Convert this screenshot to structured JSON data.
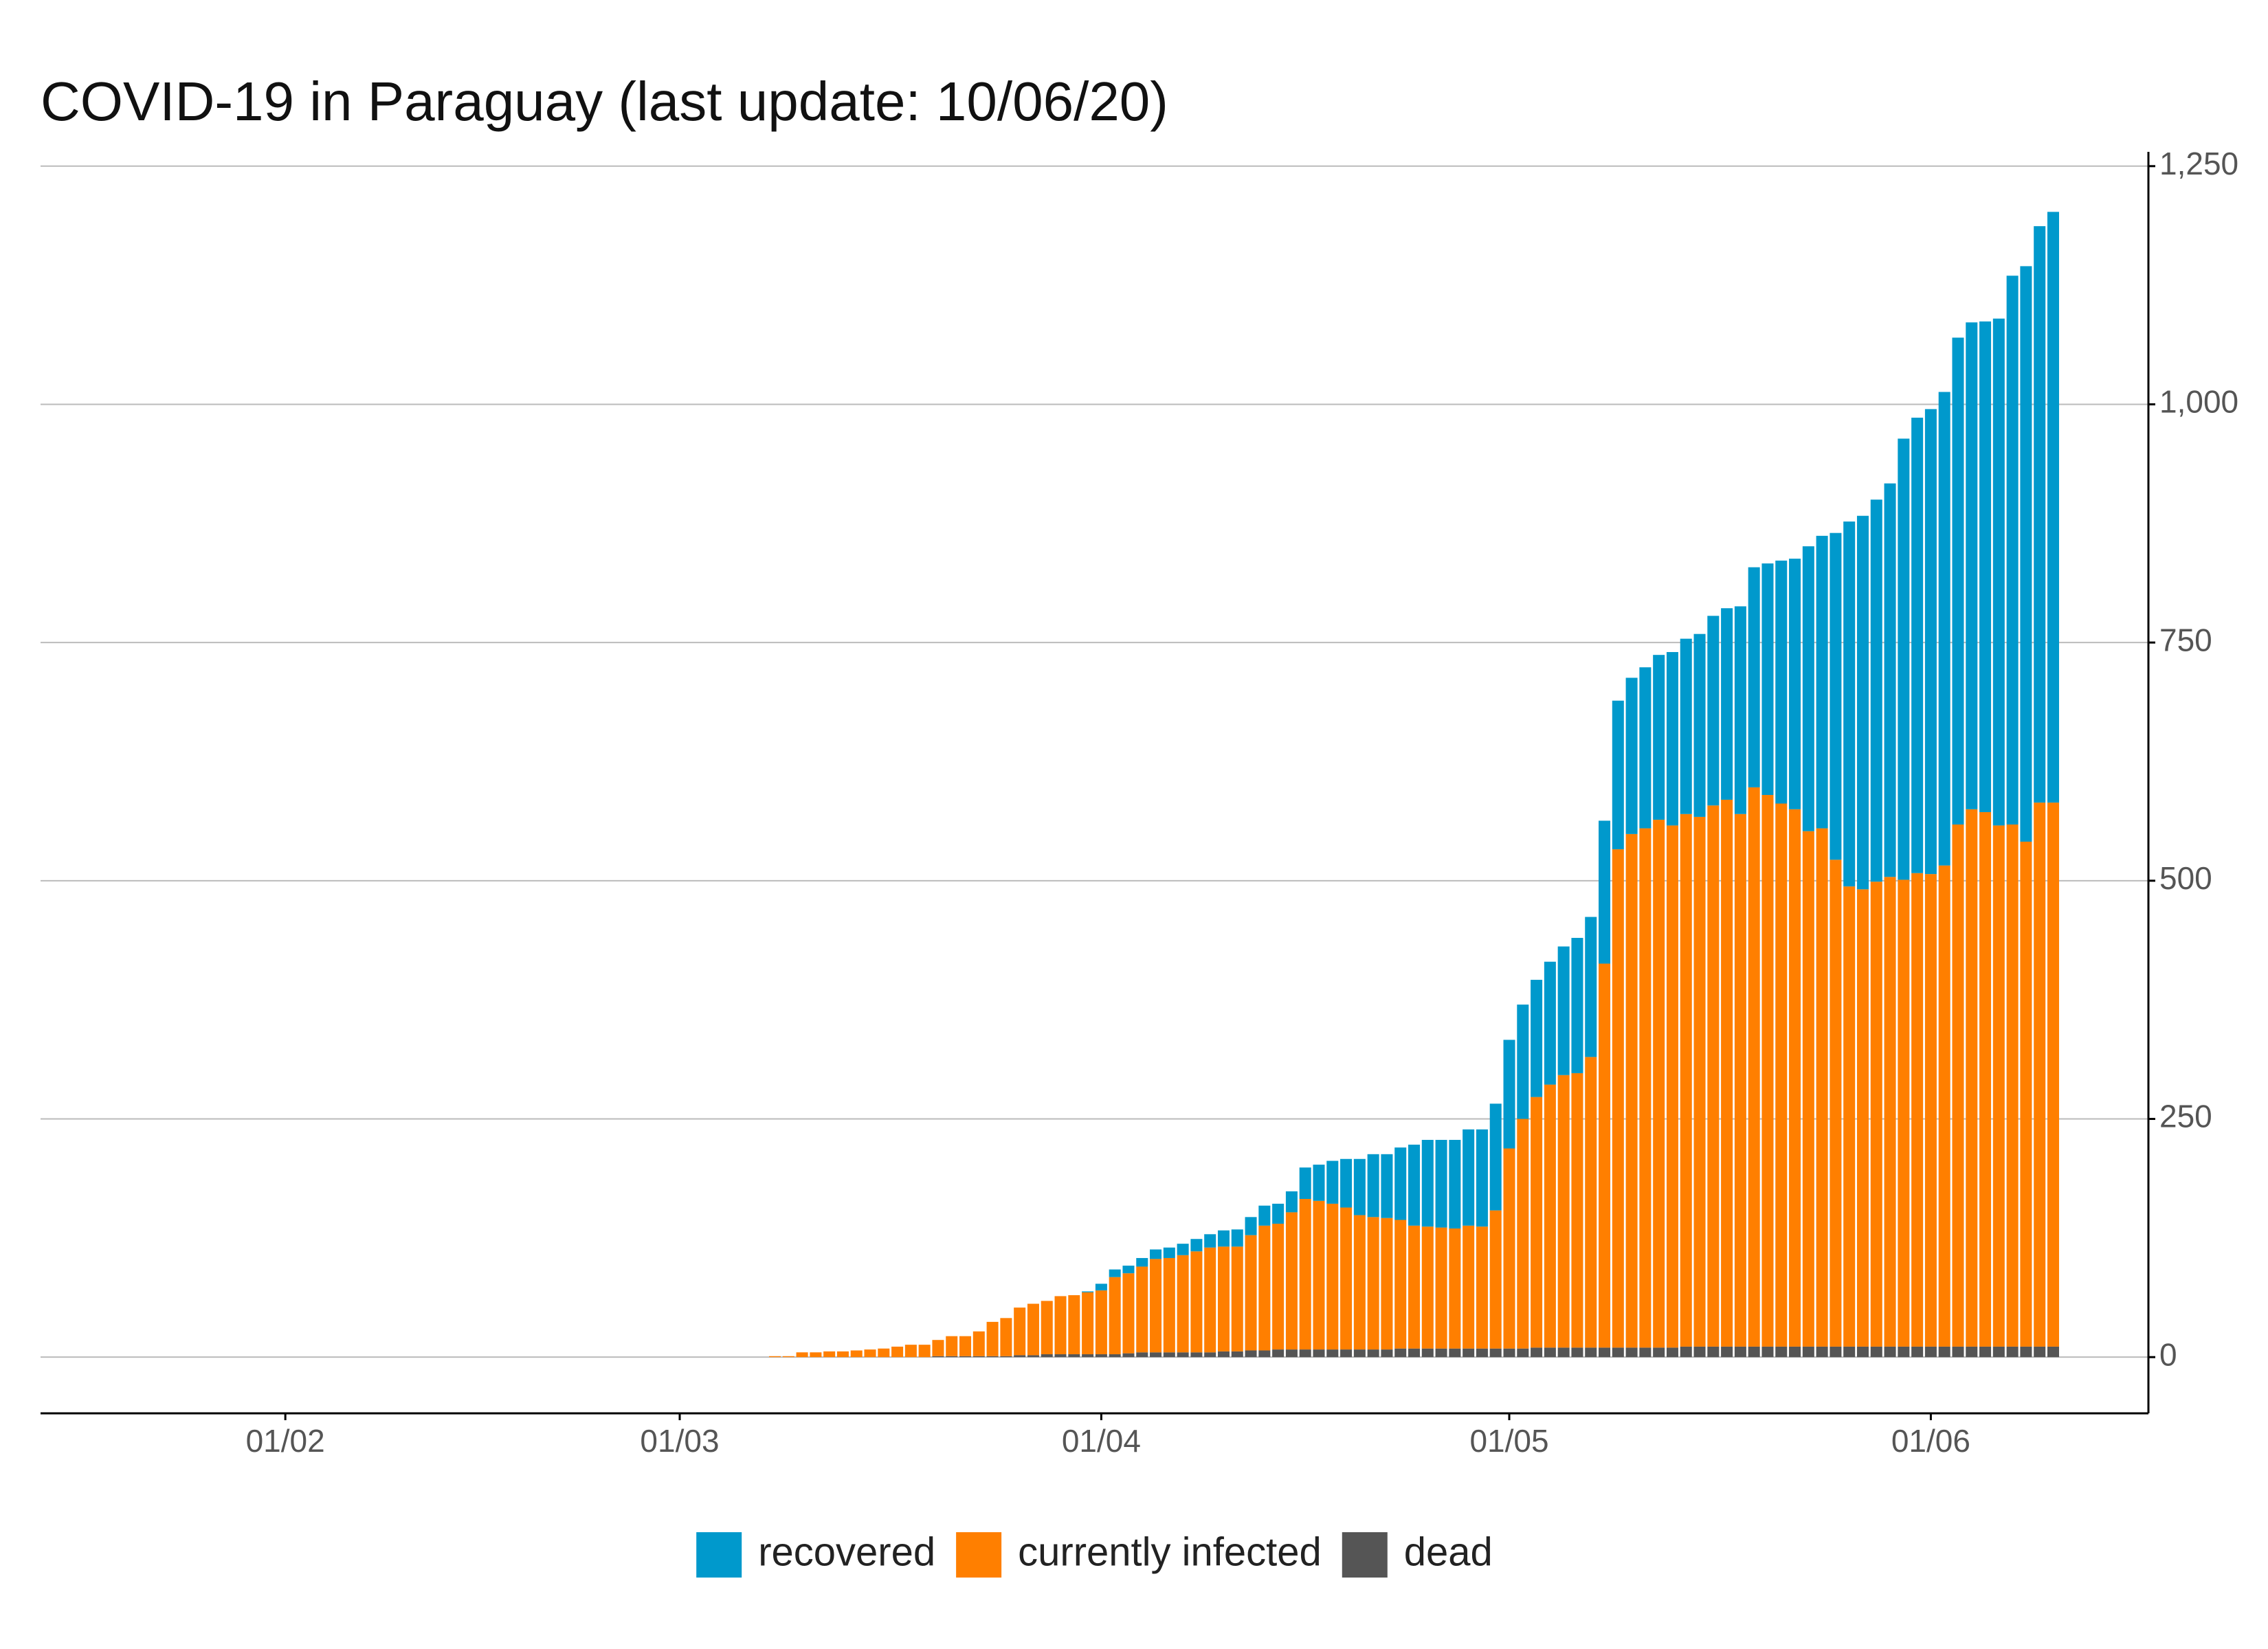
{
  "chart_data": {
    "type": "stacked_bar",
    "title": "COVID-19 in Paraguay (last update: 10/06/20)",
    "x": [
      "08/03",
      "09/03",
      "10/03",
      "11/03",
      "12/03",
      "13/03",
      "14/03",
      "15/03",
      "16/03",
      "17/03",
      "18/03",
      "19/03",
      "20/03",
      "21/03",
      "22/03",
      "23/03",
      "24/03",
      "25/03",
      "26/03",
      "27/03",
      "28/03",
      "29/03",
      "30/03",
      "31/03",
      "01/04",
      "02/04",
      "03/04",
      "04/04",
      "05/04",
      "06/04",
      "07/04",
      "08/04",
      "09/04",
      "10/04",
      "11/04",
      "12/04",
      "13/04",
      "14/04",
      "15/04",
      "16/04",
      "17/04",
      "18/04",
      "19/04",
      "20/04",
      "21/04",
      "22/04",
      "23/04",
      "24/04",
      "25/04",
      "26/04",
      "27/04",
      "28/04",
      "29/04",
      "30/04",
      "01/05",
      "02/05",
      "03/05",
      "04/05",
      "05/05",
      "06/05",
      "07/05",
      "08/05",
      "09/05",
      "10/05",
      "11/05",
      "12/05",
      "13/05",
      "14/05",
      "15/05",
      "16/05",
      "17/05",
      "18/05",
      "19/05",
      "20/05",
      "21/05",
      "22/05",
      "23/05",
      "24/05",
      "25/05",
      "26/05",
      "27/05",
      "28/05",
      "29/05",
      "30/05",
      "31/05",
      "01/06",
      "02/06",
      "03/06",
      "04/06",
      "05/06",
      "06/06",
      "07/06",
      "08/06",
      "09/06",
      "10/06"
    ],
    "series": [
      {
        "name": "dead",
        "color": "#555555",
        "values": [
          0,
          0,
          0,
          0,
          0,
          0,
          0,
          0,
          0,
          0,
          0,
          0,
          1,
          1,
          1,
          1,
          1,
          1,
          2,
          2,
          3,
          3,
          3,
          3,
          3,
          3,
          4,
          5,
          5,
          5,
          5,
          5,
          5,
          6,
          6,
          7,
          7,
          8,
          8,
          8,
          8,
          8,
          8,
          8,
          8,
          8,
          9,
          9,
          9,
          9,
          9,
          9,
          9,
          9,
          9,
          9,
          10,
          10,
          10,
          10,
          10,
          10,
          10,
          10,
          10,
          10,
          10,
          11,
          11,
          11,
          11,
          11,
          11,
          11,
          11,
          11,
          11,
          11,
          11,
          11,
          11,
          11,
          11,
          11,
          11,
          11,
          11,
          11,
          11,
          11,
          11,
          11,
          11,
          11,
          11
        ]
      },
      {
        "name": "currently infected",
        "color": "#ff7f00",
        "values": [
          1,
          1,
          5,
          5,
          6,
          6,
          7,
          8,
          9,
          11,
          13,
          13,
          17,
          21,
          21,
          26,
          36,
          40,
          50,
          54,
          56,
          61,
          62,
          65,
          67,
          81,
          84,
          90,
          98,
          99,
          102,
          106,
          110,
          110,
          110,
          121,
          131,
          132,
          144,
          158,
          156,
          153,
          149,
          141,
          139,
          138,
          135,
          129,
          128,
          127,
          126,
          129,
          128,
          145,
          210,
          241,
          263,
          276,
          286,
          288,
          305,
          403,
          523,
          539,
          545,
          554,
          548,
          559,
          556,
          568,
          574,
          559,
          587,
          579,
          570,
          564,
          541,
          544,
          511,
          483,
          480,
          488,
          493,
          490,
          497,
          496,
          505,
          548,
          564,
          561,
          547,
          548,
          530,
          571,
          571
        ]
      },
      {
        "name": "recovered",
        "color": "#0099cc",
        "values": [
          0,
          0,
          0,
          0,
          0,
          0,
          0,
          0,
          0,
          0,
          0,
          0,
          0,
          0,
          0,
          0,
          0,
          0,
          0,
          0,
          0,
          0,
          0,
          1,
          7,
          8,
          8,
          9,
          10,
          11,
          12,
          13,
          14,
          17,
          18,
          19,
          21,
          21,
          22,
          33,
          38,
          45,
          51,
          59,
          66,
          67,
          76,
          85,
          91,
          92,
          93,
          101,
          102,
          112,
          114,
          120,
          123,
          129,
          135,
          142,
          147,
          150,
          156,
          164,
          169,
          173,
          182,
          184,
          192,
          199,
          201,
          218,
          231,
          243,
          255,
          263,
          299,
          307,
          343,
          383,
          392,
          401,
          413,
          463,
          478,
          488,
          497,
          511,
          511,
          515,
          532,
          576,
          604,
          605,
          620
        ]
      }
    ],
    "xlim": [
      "14/01",
      "17/06"
    ],
    "xticks": [
      "01/02",
      "01/03",
      "01/04",
      "01/05",
      "01/06"
    ],
    "ylim": [
      -59,
      1265
    ],
    "yticks": [
      0,
      250,
      500,
      750,
      {
        "value": 1000,
        "label": "1,000"
      },
      {
        "value": 1250,
        "label": "1,250"
      }
    ],
    "grid": true,
    "legend": "bottom"
  }
}
